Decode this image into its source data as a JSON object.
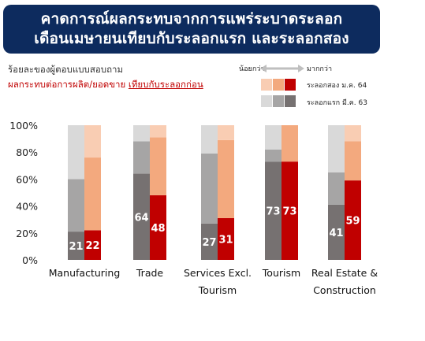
{
  "header": {
    "line1": "คาดการณ์ผลกระทบจากการแพร่ระบาดระลอก",
    "line2": "เดือนเมษายนเทียบกับระลอกแรก และระลอกสอง"
  },
  "subtitle": {
    "line1": "ร้อยละของผู้ตอบแบบสอบถาม",
    "line2_part1": "ผลกระทบต่อการผลิต/ยอดขาย",
    "line2_part2": "เทียบกับระลอกก่อน"
  },
  "legend": {
    "less": "น้อยกว่า",
    "more": "มากกว่า",
    "wave2": "ระลอกสอง ม.ค. 64",
    "wave1": "ระลอกแรก มี.ค. 63",
    "wave2_colors": [
      "#f9cdb3",
      "#f3a97e",
      "#c00000"
    ],
    "wave1_colors": [
      "#d9d9d9",
      "#a6a5a5",
      "#767171"
    ]
  },
  "chart_data": {
    "type": "bar",
    "stacked": true,
    "ylim": [
      0,
      100
    ],
    "yticks": [
      "0%",
      "20%",
      "40%",
      "60%",
      "80%",
      "100%"
    ],
    "categories": [
      [
        "Manufacturing"
      ],
      [
        "Trade"
      ],
      [
        "Services Excl.",
        "Tourism"
      ],
      [
        "Tourism"
      ],
      [
        "Real Estate &",
        "Construction"
      ]
    ],
    "series": [
      {
        "name": "ระลอกแรก มี.ค. 63",
        "colors": [
          "#767171",
          "#a6a5a5",
          "#d9d9d9"
        ],
        "stacks": [
          [
            21,
            39,
            40
          ],
          [
            64,
            24,
            12
          ],
          [
            27,
            52,
            21
          ],
          [
            73,
            9,
            18
          ],
          [
            41,
            24,
            35
          ]
        ],
        "labels": [
          "21",
          "64",
          "27",
          "73",
          "41"
        ]
      },
      {
        "name": "ระลอกสอง ม.ค. 64",
        "colors": [
          "#c00000",
          "#f3a97e",
          "#f9cdb3"
        ],
        "stacks": [
          [
            22,
            54,
            24
          ],
          [
            48,
            43,
            9
          ],
          [
            31,
            58,
            11
          ],
          [
            73,
            27,
            0
          ],
          [
            59,
            29,
            12
          ]
        ],
        "labels": [
          "22",
          "48",
          "31",
          "73",
          "59"
        ]
      }
    ]
  }
}
